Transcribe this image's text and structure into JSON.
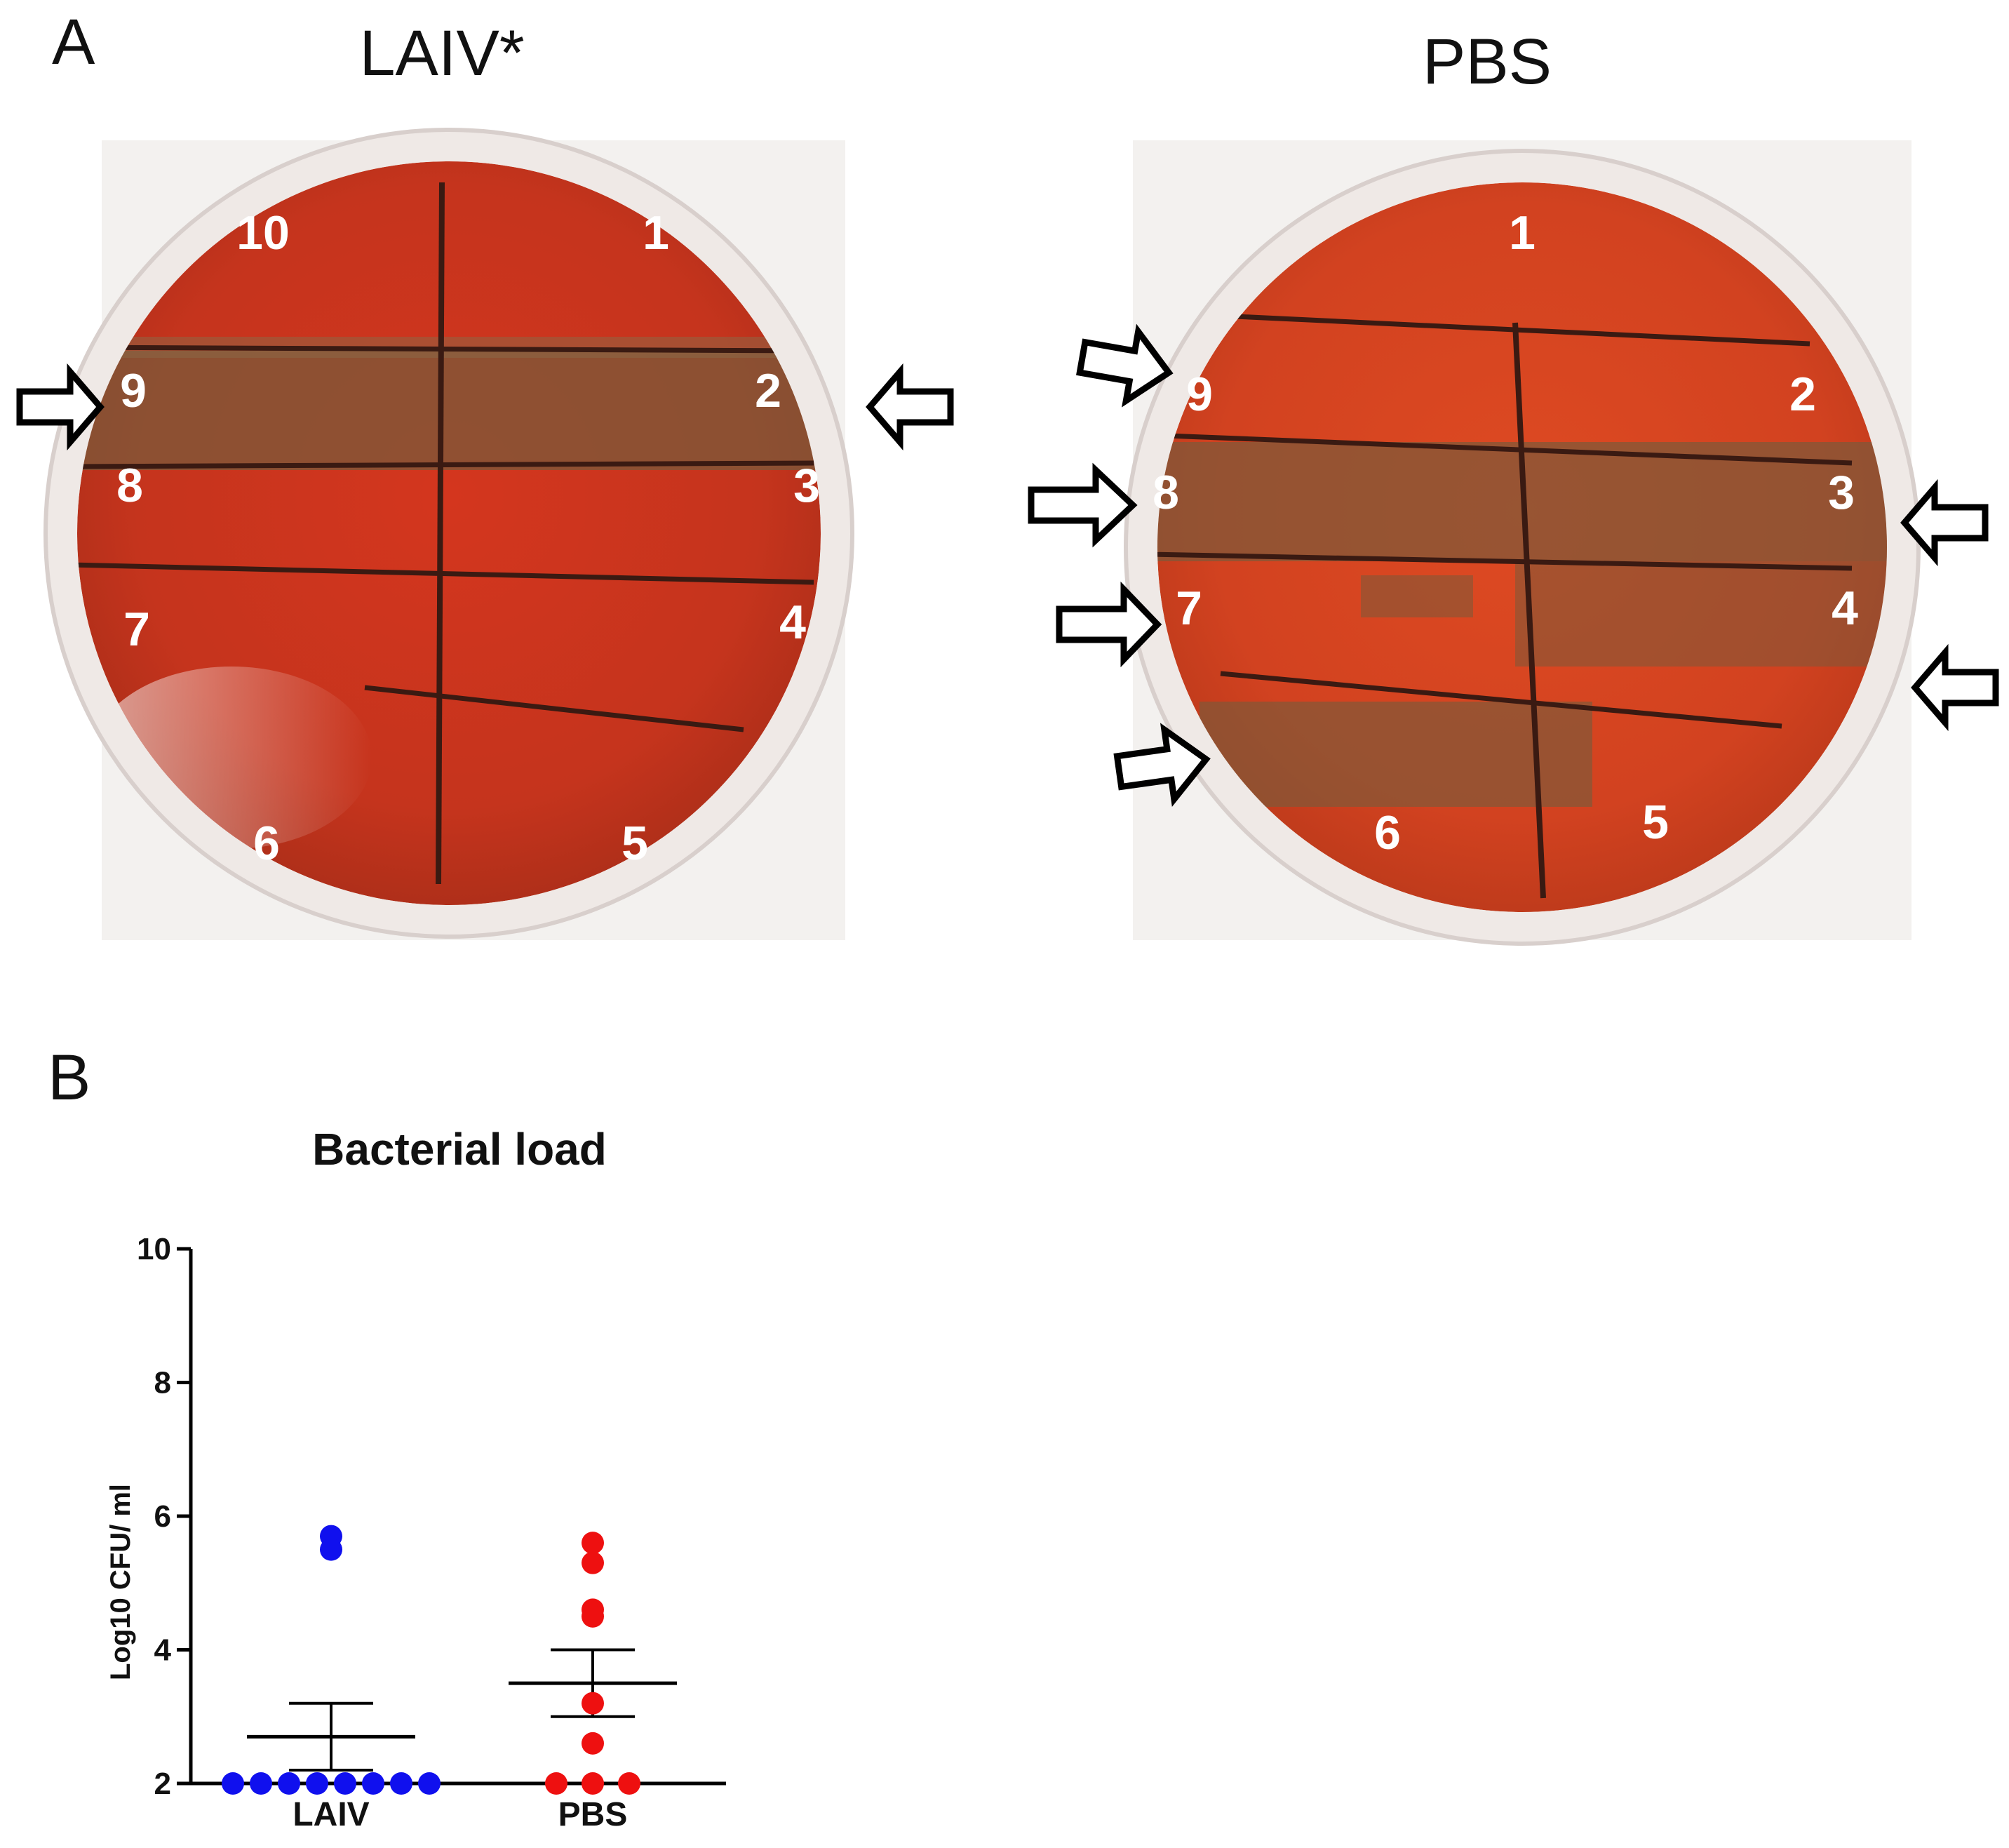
{
  "panel_a": {
    "letter": "A",
    "plates": [
      {
        "title": "LAIV*",
        "sector_labels": [
          "1",
          "2",
          "3",
          "4",
          "5",
          "6",
          "7",
          "8",
          "9",
          "10"
        ],
        "arrows_at": [
          "9",
          "2"
        ]
      },
      {
        "title": "PBS",
        "sector_labels": [
          "1",
          "2",
          "3",
          "4",
          "5",
          "6",
          "7",
          "8",
          "9"
        ],
        "arrows_at": [
          "9",
          "8",
          "3",
          "7",
          "4",
          "6"
        ]
      }
    ]
  },
  "panel_b": {
    "letter": "B"
  },
  "chart_data": {
    "type": "scatter",
    "title": "Bacterial load",
    "ylabel": "Log10 CFU/ ml",
    "xlabel": "",
    "categories": [
      "LAIV",
      "PBS"
    ],
    "ylim": [
      2,
      10
    ],
    "yticks": [
      2,
      4,
      6,
      8,
      10
    ],
    "series": [
      {
        "category": "LAIV",
        "color": "#1010ee",
        "values": [
          5.7,
          5.5,
          2,
          2,
          2,
          2,
          2,
          2,
          2,
          2
        ],
        "mean": 2.7,
        "sem_upper": 3.2,
        "sem_lower": 2.2
      },
      {
        "category": "PBS",
        "color": "#ee1010",
        "values": [
          5.6,
          5.3,
          4.6,
          4.5,
          3.2,
          2.6,
          2,
          2,
          2
        ],
        "mean": 3.5,
        "sem_upper": 4.0,
        "sem_lower": 3.0
      }
    ]
  }
}
